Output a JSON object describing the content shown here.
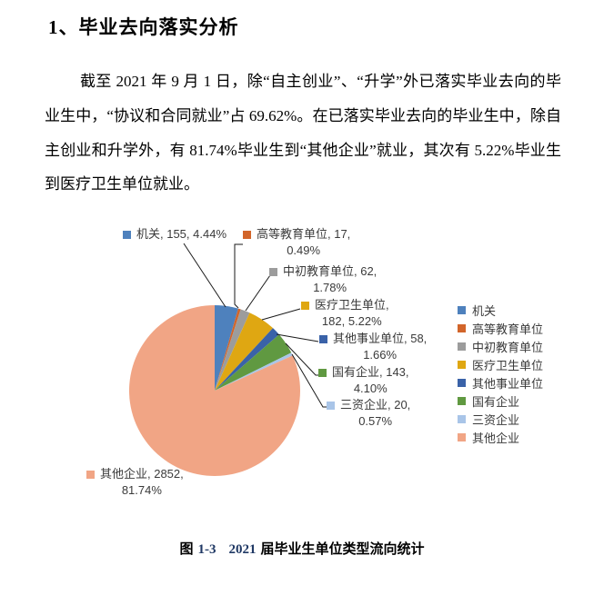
{
  "document": {
    "heading": "1、毕业去向落实分析",
    "paragraph": "截至 2021 年 9 月 1 日，除“自主创业”、“升学”外已落实毕业去向的毕业生中，“协议和合同就业”占 69.62%。在已落实毕业去向的毕业生中，除自主创业和升学外，有 81.74%毕业生到“其他企业”就业，其次有 5.22%毕业生到医疗卫生单位就业。",
    "caption": {
      "label": "图",
      "figure_no": "1-3",
      "year": "2021",
      "text": "届毕业生单位类型流向统计",
      "number_color": "#1F3864"
    }
  },
  "chart_data": {
    "type": "pie",
    "title": "",
    "categories": [
      "机关",
      "高等教育单位",
      "中初教育单位",
      "医疗卫生单位",
      "其他事业单位",
      "国有企业",
      "三资企业",
      "其他企业"
    ],
    "values": [
      155,
      17,
      62,
      182,
      58,
      143,
      20,
      2852
    ],
    "percent_labels": [
      "4.44%",
      "0.49%",
      "1.78%",
      "5.22%",
      "1.66%",
      "4.10%",
      "0.57%",
      "81.74%"
    ],
    "colors": [
      "#4E81BD",
      "#D2652A",
      "#9C9C9C",
      "#DFA712",
      "#3A62A8",
      "#609941",
      "#A9C5E8",
      "#F1A585"
    ],
    "data_labels": [
      {
        "line1": "机关, 155, 4.44%",
        "line2": ""
      },
      {
        "line1": "高等教育单位, 17,",
        "line2": "0.49%"
      },
      {
        "line1": "中初教育单位, 62,",
        "line2": "1.78%"
      },
      {
        "line1": "医疗卫生单位,",
        "line2": "182, 5.22%"
      },
      {
        "line1": "其他事业单位, 58,",
        "line2": "1.66%"
      },
      {
        "line1": "国有企业, 143,",
        "line2": "4.10%"
      },
      {
        "line1": "三资企业, 20,",
        "line2": "0.57%"
      },
      {
        "line1": "其他企业, 2852,",
        "line2": "81.74%"
      }
    ],
    "legend": {
      "position": "right",
      "entries": [
        "机关",
        "高等教育单位",
        "中初教育单位",
        "医疗卫生单位",
        "其他事业单位",
        "国有企业",
        "三资企业",
        "其他企业"
      ]
    },
    "label_text_color": "#3A3A3A",
    "leader_line_color": "#1A1A1A"
  }
}
